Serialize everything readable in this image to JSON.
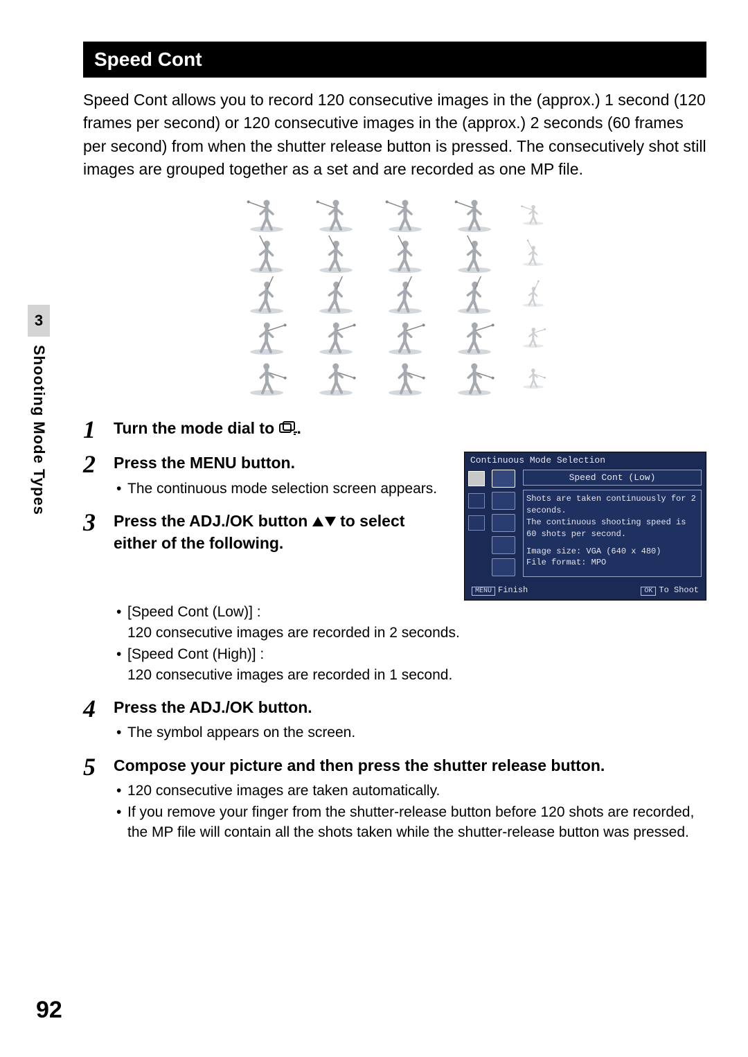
{
  "section_header": "Speed Cont",
  "intro_text": "Speed Cont allows you to record 120 consecutive images in the (approx.) 1 second (120 frames per second) or 120 consecutive images in the (approx.) 2 seconds (60 frames per second) from when the shutter release button is pressed. The consecutively shot still images are grouped together as a set and are recorded as one MP file.",
  "golf_grid": {
    "rows": 5,
    "cols": 5,
    "frame_bg": "#e1e4e7",
    "figure_color": "#a6aab0"
  },
  "steps": {
    "s1": {
      "num": "1",
      "title_pre": "Turn the mode dial to ",
      "title_post": "."
    },
    "s2": {
      "num": "2",
      "title": "Press the MENU button.",
      "bullets": [
        "The continuous mode selection screen appears."
      ]
    },
    "s3": {
      "num": "3",
      "title_pre": "Press the ADJ./OK button ",
      "title_post": " to select either of the following.",
      "bullets": [
        "[Speed Cont (Low)] :\n120 consecutive images are recorded in 2 seconds.",
        "[Speed Cont (High)] :\n120 consecutive images are recorded in 1 second."
      ]
    },
    "s4": {
      "num": "4",
      "title": "Press the ADJ./OK button.",
      "bullets": [
        "The symbol appears on the screen."
      ]
    },
    "s5": {
      "num": "5",
      "title": "Compose your picture and then press the shutter release button.",
      "bullets": [
        "120 consecutive images are taken automatically.",
        "If you remove your finger from the shutter-release button before 120 shots are recorded, the MP file will contain all the shots taken while the shutter-release button was pressed."
      ]
    }
  },
  "lcd": {
    "title": "Continuous Mode Selection",
    "option_title": "Speed Cont (Low)",
    "desc_line1": "Shots are taken continuously for 2 seconds.",
    "desc_line2": "The continuous shooting speed is 60 shots per second.",
    "desc_line3": "Image size: VGA (640 x 480)",
    "desc_line4": "File format: MPO",
    "footer_left_btn": "MENU",
    "footer_left_text": "Finish",
    "footer_right_btn": "OK",
    "footer_right_text": "To Shoot",
    "bg_color": "#1b2a55",
    "border_color": "#9aa6c6",
    "text_color": "#e6e6f0"
  },
  "side": {
    "chapter_num": "3",
    "chapter_title": "Shooting Mode Types"
  },
  "page_number": "92"
}
